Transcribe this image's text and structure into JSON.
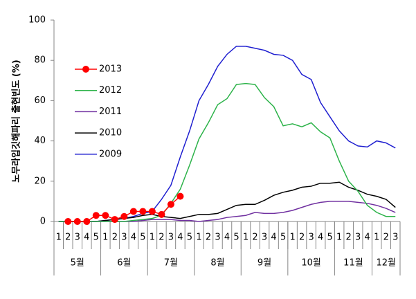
{
  "chart_data": {
    "type": "line",
    "y_label": "노무라입깃해파리 출현빈도 (%)",
    "categories": [
      "1",
      "2",
      "3",
      "4",
      "5",
      "1",
      "2",
      "3",
      "4",
      "5",
      "1",
      "2",
      "3",
      "4",
      "5",
      "1",
      "2",
      "3",
      "4",
      "5",
      "1",
      "2",
      "3",
      "4",
      "5",
      "1",
      "2",
      "3",
      "4",
      "5",
      "1",
      "2",
      "3",
      "4",
      "1",
      "2",
      "3"
    ],
    "groups": [
      {
        "label": "5월",
        "span": 5
      },
      {
        "label": "6월",
        "span": 5
      },
      {
        "label": "7월",
        "span": 5
      },
      {
        "label": "8월",
        "span": 5
      },
      {
        "label": "9월",
        "span": 5
      },
      {
        "label": "10월",
        "span": 5
      },
      {
        "label": "11월",
        "span": 4
      },
      {
        "label": "12월",
        "span": 3
      }
    ],
    "ylim": [
      0,
      100
    ],
    "yticks": [
      0,
      20,
      40,
      60,
      80,
      100
    ],
    "series": [
      {
        "name": "2013",
        "color": "#ff0000",
        "marker": true,
        "values": [
          null,
          0,
          0,
          0,
          3,
          3,
          1,
          2.5,
          5,
          5,
          5,
          3.5,
          8.5,
          12.5,
          null,
          null,
          null,
          null,
          null,
          null,
          null,
          null,
          null,
          null,
          null,
          null,
          null,
          null,
          null,
          null,
          null,
          null,
          null,
          null,
          null,
          null,
          null
        ]
      },
      {
        "name": "2012",
        "color": "#2db34a",
        "values": [
          0,
          0,
          0,
          0,
          0,
          0,
          0,
          0,
          0.5,
          1,
          1.5,
          3,
          9,
          16,
          28,
          41,
          49,
          58,
          61,
          68,
          68.5,
          68,
          61.5,
          57,
          47.5,
          48.5,
          47,
          49,
          44.5,
          41.5,
          30,
          20,
          15,
          8,
          4.5,
          2.5,
          2.5
        ]
      },
      {
        "name": "2011",
        "color": "#7030a0",
        "values": [
          0,
          0,
          0,
          0,
          0,
          0,
          0,
          0,
          0,
          0.5,
          1,
          1,
          1,
          0.5,
          0.5,
          0,
          0.5,
          1,
          2,
          2.5,
          3,
          4.5,
          4,
          4,
          4.5,
          5.5,
          7,
          8.5,
          9.5,
          10,
          10,
          10,
          9.5,
          9,
          8,
          6.5,
          4.5
        ]
      },
      {
        "name": "2010",
        "color": "#000000",
        "values": [
          0,
          0,
          0,
          0,
          0,
          0.5,
          1,
          1.5,
          2,
          3,
          3.5,
          2.5,
          2,
          1.5,
          2.5,
          3.5,
          3.5,
          4,
          6,
          8,
          8.5,
          8.5,
          10.5,
          13,
          14.5,
          15.5,
          17,
          17.5,
          19,
          19,
          19.5,
          17,
          15.5,
          13.5,
          12.5,
          11,
          7
        ]
      },
      {
        "name": "2009",
        "color": "#1f1fd0",
        "values": [
          0,
          0,
          0,
          0,
          0,
          0.5,
          1,
          1.5,
          2.5,
          4,
          5,
          11,
          18,
          32,
          45,
          60,
          68,
          77,
          83,
          87,
          87,
          86,
          85,
          83,
          82.5,
          80,
          73,
          70.5,
          59,
          52,
          45,
          40,
          37.5,
          37,
          40,
          39,
          36.5
        ]
      }
    ]
  }
}
